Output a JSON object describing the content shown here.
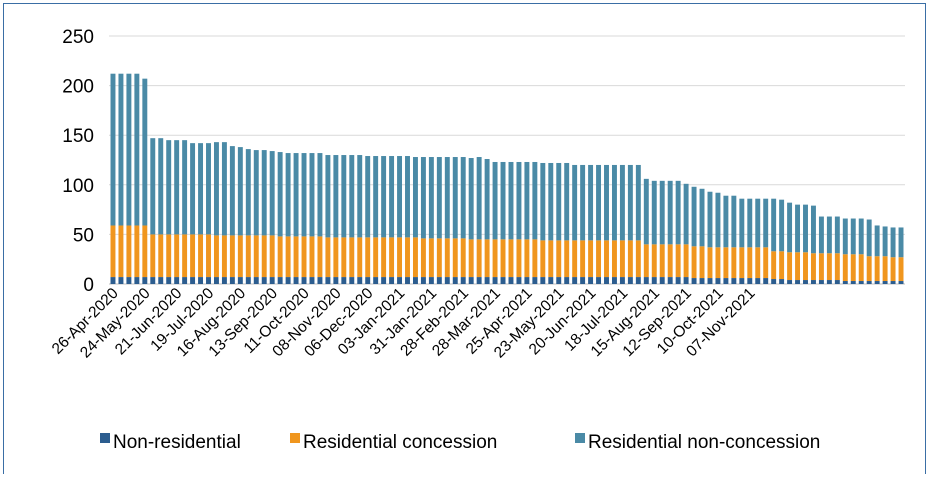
{
  "chart_data": {
    "type": "bar",
    "stacked": true,
    "title": "",
    "xlabel": "",
    "ylabel": "",
    "ylim": [
      0,
      250
    ],
    "yticks": [
      0,
      50,
      100,
      150,
      200,
      250
    ],
    "grid": true,
    "legend_position": "bottom",
    "x_tick_labels": [
      "26-Apr-2020",
      "24-May-2020",
      "21-Jun-2020",
      "19-Jul-2020",
      "16-Aug-2020",
      "13-Sep-2020",
      "11-Oct-2020",
      "08-Nov-2020",
      "06-Dec-2020",
      "03-Jan-2021",
      "31-Jan-2021",
      "28-Feb-2021",
      "28-Mar-2021",
      "25-Apr-2021",
      "23-May-2021",
      "20-Jun-2021",
      "18-Jul-2021",
      "15-Aug-2021",
      "12-Sep-2021",
      "10-Oct-2021",
      "07-Nov-2021"
    ],
    "series": [
      {
        "name": "Non-residential",
        "color": "#2c5d8f",
        "values": [
          7,
          7,
          7,
          7,
          7,
          7,
          7,
          7,
          7,
          7,
          7,
          7,
          7,
          7,
          7,
          7,
          7,
          7,
          7,
          7,
          7,
          7,
          7,
          7,
          7,
          7,
          7,
          7,
          7,
          7,
          7,
          7,
          7,
          7,
          7,
          7,
          7,
          7,
          7,
          7,
          7,
          7,
          7,
          7,
          7,
          7,
          7,
          7,
          7,
          7,
          7,
          7,
          7,
          7,
          7,
          7,
          7,
          7,
          7,
          7,
          7,
          7,
          7,
          7,
          7,
          7,
          7,
          7,
          7,
          7,
          7,
          7,
          7,
          6,
          6,
          6,
          6,
          6,
          6,
          6,
          6,
          6,
          6,
          5,
          5,
          4,
          4,
          4,
          4,
          4,
          4,
          4,
          3,
          3,
          3,
          3,
          3,
          3,
          3,
          3
        ]
      },
      {
        "name": "Residential concession",
        "color": "#f0961e",
        "values": [
          52,
          52,
          52,
          52,
          52,
          43,
          43,
          43,
          43,
          43,
          43,
          43,
          43,
          42,
          42,
          42,
          42,
          42,
          42,
          42,
          42,
          41,
          41,
          41,
          41,
          41,
          41,
          40,
          40,
          40,
          40,
          40,
          40,
          40,
          40,
          40,
          40,
          40,
          40,
          39,
          39,
          39,
          39,
          39,
          39,
          38,
          38,
          38,
          38,
          38,
          38,
          38,
          38,
          38,
          37,
          37,
          37,
          37,
          37,
          37,
          37,
          37,
          37,
          37,
          37,
          37,
          37,
          33,
          33,
          33,
          33,
          33,
          33,
          32,
          32,
          31,
          31,
          31,
          31,
          31,
          31,
          31,
          31,
          28,
          28,
          28,
          28,
          28,
          27,
          27,
          27,
          27,
          27,
          27,
          27,
          25,
          25,
          25,
          24,
          24
        ]
      },
      {
        "name": "Residential non-concession",
        "color": "#4a8aa6",
        "values": [
          153,
          153,
          153,
          153,
          148,
          97,
          97,
          95,
          95,
          95,
          92,
          92,
          92,
          94,
          94,
          90,
          89,
          87,
          86,
          86,
          85,
          85,
          84,
          84,
          84,
          84,
          84,
          83,
          83,
          83,
          83,
          83,
          82,
          82,
          82,
          82,
          82,
          82,
          81,
          82,
          82,
          82,
          82,
          82,
          82,
          82,
          83,
          81,
          78,
          78,
          78,
          78,
          78,
          78,
          78,
          78,
          78,
          78,
          76,
          76,
          76,
          76,
          76,
          76,
          76,
          76,
          76,
          66,
          64,
          64,
          64,
          64,
          61,
          60,
          58,
          56,
          55,
          52,
          52,
          49,
          49,
          49,
          49,
          53,
          52,
          50,
          48,
          48,
          48,
          37,
          37,
          37,
          36,
          36,
          36,
          37,
          31,
          30,
          30,
          30
        ]
      }
    ]
  }
}
